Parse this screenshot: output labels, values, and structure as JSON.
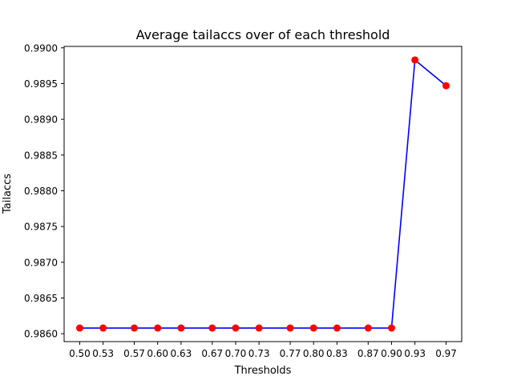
{
  "chart_data": {
    "type": "line",
    "title": "Average tailaccs over of each threshold",
    "xlabel": "Thresholds",
    "ylabel": "Tailaccs",
    "x": [
      0.5,
      0.53,
      0.57,
      0.6,
      0.63,
      0.67,
      0.7,
      0.73,
      0.77,
      0.8,
      0.83,
      0.87,
      0.9,
      0.93,
      0.97
    ],
    "x_tick_labels": [
      "0.50",
      "0.53",
      "0.57",
      "0.60",
      "0.63",
      "0.67",
      "0.70",
      "0.73",
      "0.77",
      "0.80",
      "0.83",
      "0.87",
      "0.90",
      "0.93",
      "0.97"
    ],
    "series": [
      {
        "values": [
          0.98608,
          0.98608,
          0.98608,
          0.98608,
          0.98608,
          0.98608,
          0.98608,
          0.98608,
          0.98608,
          0.98608,
          0.98608,
          0.98608,
          0.98608,
          0.98983,
          0.98947
        ],
        "line_color": "#0000ff",
        "marker_color": "#ff0000"
      }
    ],
    "y_ticks": [
      0.986,
      0.9865,
      0.987,
      0.9875,
      0.988,
      0.9885,
      0.989,
      0.9895,
      0.99
    ],
    "y_tick_labels": [
      "0.9860",
      "0.9865",
      "0.9870",
      "0.9875",
      "0.9880",
      "0.9885",
      "0.9890",
      "0.9895",
      "0.9900"
    ],
    "ylim": [
      0.98589,
      0.99002
    ],
    "xlim": [
      0.48,
      0.99
    ],
    "grid": false,
    "legend": "none"
  }
}
